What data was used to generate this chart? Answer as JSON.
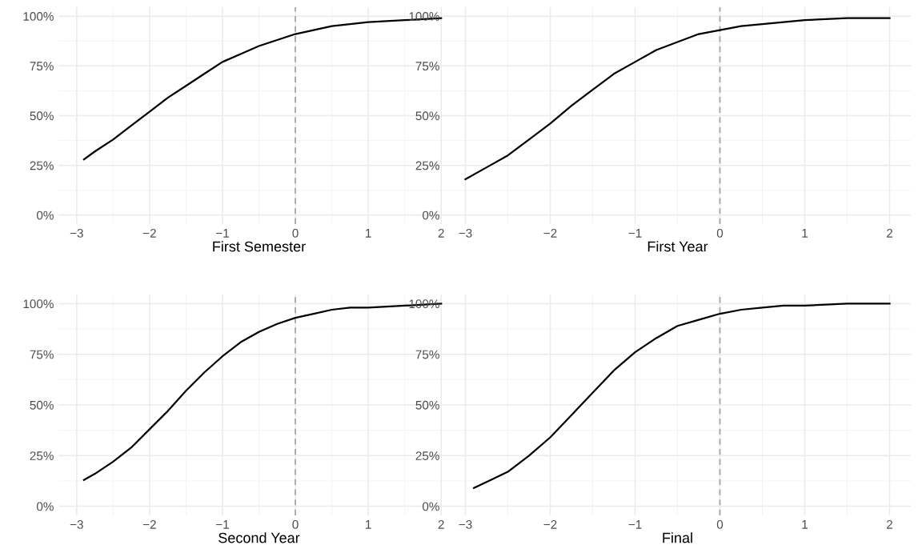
{
  "chart_data": [
    {
      "type": "line",
      "xlabel": "First Semester",
      "x": [
        -2.9,
        -2.75,
        -2.5,
        -2.25,
        -2,
        -1.75,
        -1.5,
        -1.25,
        -1,
        -0.75,
        -0.5,
        -0.25,
        0,
        0.25,
        0.5,
        0.75,
        1,
        1.5,
        2
      ],
      "series": [
        {
          "color": "#000000",
          "values": [
            28,
            32,
            38,
            45,
            52,
            59,
            65,
            71,
            77,
            81,
            85,
            88,
            91,
            93,
            95,
            96,
            97,
            98,
            99
          ]
        }
      ],
      "xlim": [
        -3.25,
        2.25
      ],
      "xticks": [
        {
          "value": -3,
          "label": "−3"
        },
        {
          "value": -2,
          "label": "−2"
        },
        {
          "value": -1,
          "label": "−1"
        },
        0,
        1,
        2
      ],
      "ylim": [
        -4.5,
        104.5
      ],
      "yticks": [
        {
          "value": 0,
          "label": "0%"
        },
        {
          "value": 25,
          "label": "25%"
        },
        {
          "value": 50,
          "label": "50%"
        },
        {
          "value": 75,
          "label": "75%"
        },
        {
          "value": 100,
          "label": "100%"
        }
      ],
      "grid": true,
      "line_style": "solid",
      "ref_lines": [
        {
          "axis": "x",
          "value": 0,
          "color": "#a6a6a6",
          "line_style": "dashed"
        }
      ]
    },
    {
      "type": "line",
      "xlabel": "First Year",
      "x": [
        -3,
        -2.75,
        -2.5,
        -2.25,
        -2,
        -1.75,
        -1.5,
        -1.25,
        -1,
        -0.75,
        -0.5,
        -0.25,
        0,
        0.25,
        0.5,
        0.75,
        1,
        1.5,
        2
      ],
      "series": [
        {
          "color": "#000000",
          "values": [
            18,
            24,
            30,
            38,
            46,
            55,
            63,
            71,
            77,
            83,
            87,
            91,
            93,
            95,
            96,
            97,
            98,
            99,
            99
          ]
        }
      ],
      "xlim": [
        -3.25,
        2.25
      ],
      "xticks": [
        {
          "value": -3,
          "label": "−3"
        },
        {
          "value": -2,
          "label": "−2"
        },
        {
          "value": -1,
          "label": "−1"
        },
        0,
        1,
        2
      ],
      "ylim": [
        -4.5,
        104.5
      ],
      "yticks": [
        {
          "value": 0,
          "label": "0%"
        },
        {
          "value": 25,
          "label": "25%"
        },
        {
          "value": 50,
          "label": "50%"
        },
        {
          "value": 75,
          "label": "75%"
        },
        {
          "value": 100,
          "label": "100%"
        }
      ],
      "grid": true,
      "line_style": "solid",
      "ref_lines": [
        {
          "axis": "x",
          "value": 0,
          "color": "#a6a6a6",
          "line_style": "dashed"
        }
      ]
    },
    {
      "type": "line",
      "xlabel": "Second Year",
      "x": [
        -2.9,
        -2.75,
        -2.5,
        -2.25,
        -2,
        -1.75,
        -1.5,
        -1.25,
        -1,
        -0.75,
        -0.5,
        -0.25,
        0,
        0.25,
        0.5,
        0.75,
        1,
        1.5,
        2
      ],
      "series": [
        {
          "color": "#000000",
          "values": [
            13,
            16,
            22,
            29,
            38,
            47,
            57,
            66,
            74,
            81,
            86,
            90,
            93,
            95,
            97,
            98,
            98,
            99,
            100
          ]
        }
      ],
      "xlim": [
        -3.25,
        2.25
      ],
      "xticks": [
        {
          "value": -3,
          "label": "−3"
        },
        {
          "value": -2,
          "label": "−2"
        },
        {
          "value": -1,
          "label": "−1"
        },
        0,
        1,
        2
      ],
      "ylim": [
        -4.5,
        104.5
      ],
      "yticks": [
        {
          "value": 0,
          "label": "0%"
        },
        {
          "value": 25,
          "label": "25%"
        },
        {
          "value": 50,
          "label": "50%"
        },
        {
          "value": 75,
          "label": "75%"
        },
        {
          "value": 100,
          "label": "100%"
        }
      ],
      "grid": true,
      "line_style": "solid",
      "ref_lines": [
        {
          "axis": "x",
          "value": 0,
          "color": "#a6a6a6",
          "line_style": "dashed"
        }
      ]
    },
    {
      "type": "line",
      "xlabel": "Final",
      "x": [
        -2.9,
        -2.75,
        -2.5,
        -2.25,
        -2,
        -1.75,
        -1.5,
        -1.25,
        -1,
        -0.75,
        -0.5,
        -0.25,
        0,
        0.25,
        0.5,
        0.75,
        1,
        1.5,
        2
      ],
      "series": [
        {
          "color": "#000000",
          "values": [
            9,
            12,
            17,
            25,
            34,
            45,
            56,
            67,
            76,
            83,
            89,
            92,
            95,
            97,
            98,
            99,
            99,
            100,
            100
          ]
        }
      ],
      "xlim": [
        -3.25,
        2.25
      ],
      "xticks": [
        {
          "value": -3,
          "label": "−3"
        },
        {
          "value": -2,
          "label": "−2"
        },
        {
          "value": -1,
          "label": "−1"
        },
        0,
        1,
        2
      ],
      "ylim": [
        -4.5,
        104.5
      ],
      "yticks": [
        {
          "value": 0,
          "label": "0%"
        },
        {
          "value": 25,
          "label": "25%"
        },
        {
          "value": 50,
          "label": "50%"
        },
        {
          "value": 75,
          "label": "75%"
        },
        {
          "value": 100,
          "label": "100%"
        }
      ],
      "grid": true,
      "line_style": "solid",
      "ref_lines": [
        {
          "axis": "x",
          "value": 0,
          "color": "#a6a6a6",
          "line_style": "dashed"
        }
      ]
    }
  ]
}
